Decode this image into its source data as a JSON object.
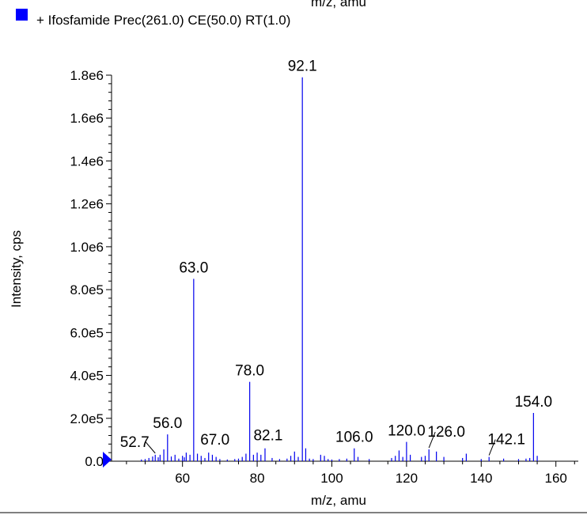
{
  "header": {
    "cropped_axis_label": "m/z, amu"
  },
  "colors": {
    "series": "#0000ee",
    "legend_square": "#0000ff",
    "axis": "#000000",
    "marker": "#0000ff"
  },
  "chart_data": {
    "type": "bar",
    "title": "",
    "xlabel": "m/z, amu",
    "ylabel": "Intensity, cps",
    "xlim": [
      41,
      166
    ],
    "ylim": [
      0,
      1800000.0
    ],
    "xticks": [
      60,
      80,
      100,
      120,
      140,
      160
    ],
    "yticks": [
      0,
      200000,
      400000,
      600000,
      800000,
      1000000,
      1200000,
      1400000,
      1600000,
      1800000
    ],
    "ytick_labels": [
      "0.0",
      "2.0e5",
      "4.0e5",
      "6.0e5",
      "8.0e5",
      "1.0e6",
      "1.2e6",
      "1.4e6",
      "1.6e6",
      "1.8e6"
    ],
    "xtick_labels": [
      "60",
      "80",
      "100",
      "120",
      "140",
      "160"
    ],
    "grid": false,
    "legend_position": "top-left",
    "series": [
      {
        "name": "+ Ifosfamide Prec(261.0) CE(50.0) RT(1.0)",
        "x": [
          49.0,
          50.0,
          51.0,
          52.0,
          52.7,
          53.5,
          54.0,
          55.0,
          56.0,
          57.0,
          58.0,
          59.0,
          60.0,
          60.5,
          61.0,
          62.0,
          63.0,
          64.0,
          65.0,
          66.0,
          67.0,
          68.0,
          69.0,
          70.0,
          72.0,
          74.0,
          75.0,
          76.0,
          77.0,
          78.0,
          79.0,
          80.0,
          81.0,
          82.1,
          84.0,
          86.0,
          88.0,
          89.0,
          90.0,
          91.0,
          92.1,
          93.0,
          94.0,
          95.0,
          97.0,
          98.0,
          99.0,
          100.0,
          102.0,
          104.0,
          106.0,
          107.0,
          110.0,
          116.0,
          117.0,
          118.0,
          119.0,
          120.0,
          121.0,
          124.0,
          125.0,
          126.0,
          128.0,
          130.0,
          135.0,
          136.0,
          140.0,
          142.1,
          146.0,
          150.0,
          152.0,
          153.0,
          154.0,
          155.0
        ],
        "values": [
          8000,
          10000,
          15000,
          22000,
          30000,
          18000,
          30000,
          55000,
          125000,
          22000,
          30000,
          12000,
          25000,
          18000,
          40000,
          30000,
          850000,
          35000,
          25000,
          15000,
          40000,
          30000,
          20000,
          10000,
          8000,
          10000,
          12000,
          20000,
          35000,
          370000,
          30000,
          40000,
          30000,
          60000,
          15000,
          10000,
          12000,
          25000,
          45000,
          20000,
          1790000,
          60000,
          12000,
          10000,
          30000,
          25000,
          10000,
          8000,
          10000,
          12000,
          60000,
          20000,
          10000,
          15000,
          25000,
          50000,
          20000,
          90000,
          30000,
          20000,
          25000,
          55000,
          45000,
          20000,
          15000,
          35000,
          10000,
          20000,
          12000,
          10000,
          12000,
          15000,
          225000,
          25000
        ]
      }
    ],
    "annotations": [
      {
        "text": "52.7",
        "x": 52.7
      },
      {
        "text": "56.0",
        "x": 56.0
      },
      {
        "text": "63.0",
        "x": 63.0
      },
      {
        "text": "67.0",
        "x": 67.0
      },
      {
        "text": "78.0",
        "x": 78.0
      },
      {
        "text": "82.1",
        "x": 82.1
      },
      {
        "text": "92.1",
        "x": 92.1
      },
      {
        "text": "106.0",
        "x": 106.0
      },
      {
        "text": "120.0",
        "x": 120.0
      },
      {
        "text": "126.0",
        "x": 126.0
      },
      {
        "text": "142.1",
        "x": 142.1
      },
      {
        "text": "154.0",
        "x": 154.0
      }
    ]
  }
}
